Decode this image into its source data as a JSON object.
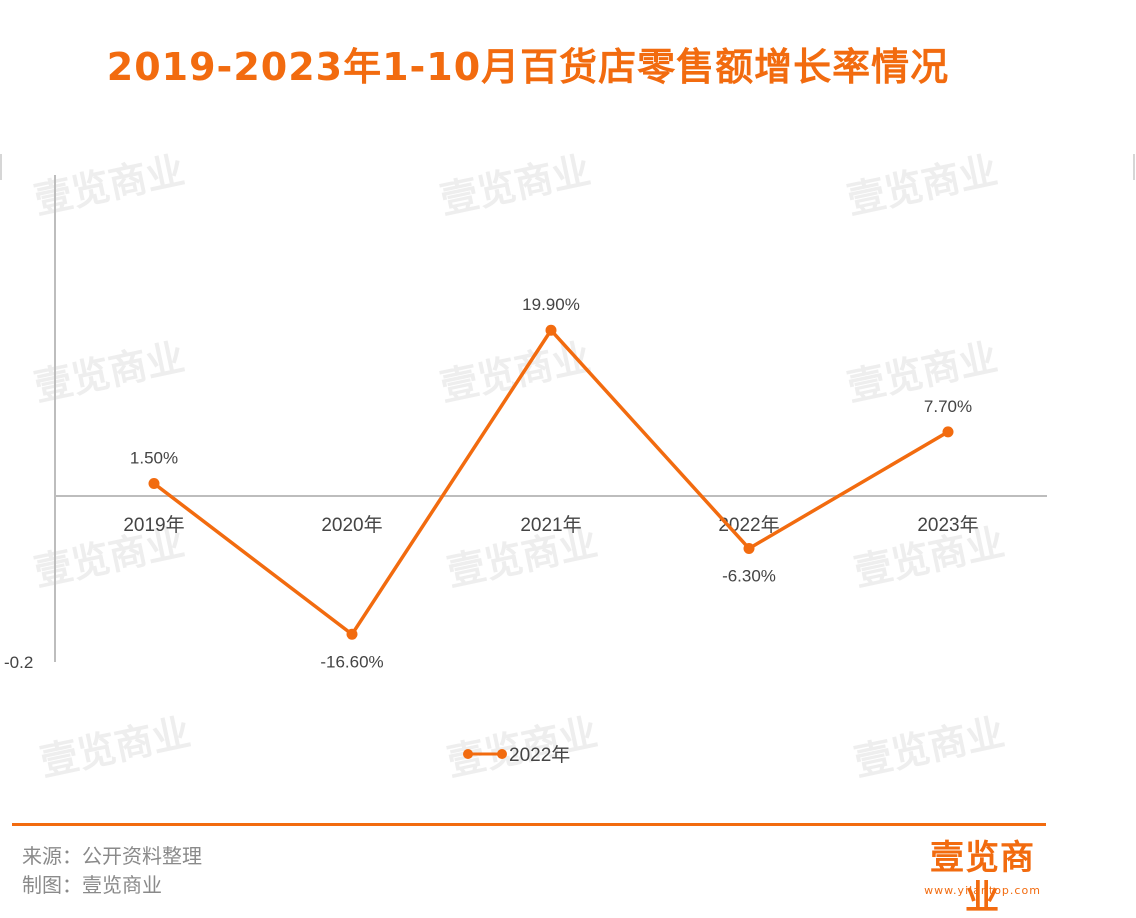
{
  "chart_data": {
    "type": "line",
    "title": "2019-2023年1-10月百货店零售额增长率情况",
    "categories": [
      "2019年",
      "2020年",
      "2021年",
      "2022年",
      "2023年"
    ],
    "series": [
      {
        "name": "2022年",
        "values": [
          1.5,
          -16.6,
          19.9,
          -6.3,
          7.7
        ],
        "labels": [
          "1.50%",
          "-16.60%",
          "19.90%",
          "-6.30%",
          "7.70%"
        ],
        "color": "#f26b0f"
      }
    ],
    "y_tick_label": "-0.2",
    "ylim": [
      -22,
      38
    ],
    "legend": "bottom-center",
    "grid": false
  },
  "watermark": "壹览商业",
  "footer": {
    "source": "来源：公开资料整理",
    "made_by": "制图：壹览商业"
  },
  "brand": {
    "logo": "壹览商业",
    "url": "www.yilantop.com"
  },
  "colors": {
    "accent": "#f26b0f",
    "axis": "#bdbdbd",
    "text": "#444444"
  }
}
